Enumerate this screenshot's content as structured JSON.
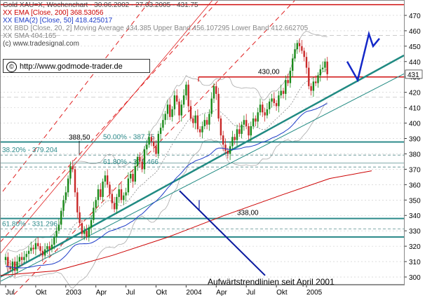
{
  "header": {
    "title": "Gold XAU=X, Wochenchart - 30.06.2002 - 27.03.2005 - 431.75",
    "ema200": "XX EMA [Close, 200] 368.53056",
    "ema50": "XX EMA(2) [Close, 50] 418.425017",
    "bbd": "XX BBD [Close, 20, 2] Moving Average 434.385 Upper Band 456.107295 Lower Band 412.662705",
    "sma": "XX SMA 404.165",
    "source": "(c) www.tradesignal.com"
  },
  "watermark": {
    "symbol": "©",
    "url": "http://www.godmode-trader.de"
  },
  "colors": {
    "up": "#1a8a1a",
    "down": "#c82828",
    "ema200": "#cc0000",
    "ema50": "#1e3cc8",
    "band": "#aaaaaa",
    "support": "#2e8b8b",
    "resistance": "#d01010",
    "trend": "#208a82",
    "projection": "#1428c8",
    "annotation_line": "#0a1aa0",
    "channel_red": "#e02020",
    "legend_top": "#444444",
    "legend_red": "#cc0000",
    "legend_blue": "#1e3cc8",
    "legend_gray": "#888888"
  },
  "chart_data": {
    "type": "candlestick",
    "title": "Gold XAU=X, Wochenchart - 30.06.2002 - 27.03.2005 - 431.75",
    "ylim": [
      295,
      480
    ],
    "yticks": [
      300,
      310,
      320,
      330,
      340,
      350,
      360,
      370,
      380,
      390,
      400,
      410,
      420,
      430,
      440,
      450,
      460,
      470
    ],
    "last_price_label": "431",
    "x_labels": [
      "Jul",
      "Okt",
      "2003",
      "Apr",
      "Jul",
      "Okt",
      "2004",
      "Apr",
      "Jul",
      "Okt",
      "2005"
    ],
    "x_label_weeks": [
      0,
      13,
      26,
      39,
      52,
      65,
      78,
      91,
      104,
      117,
      130
    ],
    "total_weeks": 170,
    "close": [
      313,
      307,
      305,
      310,
      304,
      310,
      313,
      311,
      313,
      315,
      317,
      319,
      318,
      322,
      320,
      317,
      314,
      318,
      320,
      318,
      321,
      326,
      330,
      334,
      343,
      350,
      355,
      364,
      372,
      370,
      355,
      342,
      335,
      328,
      330,
      326,
      332,
      337,
      345,
      350,
      357,
      352,
      362,
      366,
      360,
      354,
      348,
      344,
      352,
      357,
      350,
      353,
      355,
      364,
      367,
      362,
      372,
      378,
      375,
      370,
      383,
      386,
      391,
      388,
      385,
      380,
      393,
      397,
      402,
      406,
      412,
      404,
      409,
      418,
      414,
      405,
      412,
      418,
      425,
      411,
      403,
      400,
      405,
      396,
      394,
      398,
      402,
      399,
      406,
      416,
      424,
      419,
      403,
      392,
      386,
      382,
      380,
      385,
      391,
      389,
      396,
      393,
      399,
      402,
      398,
      392,
      398,
      403,
      401,
      407,
      412,
      407,
      405,
      409,
      414,
      416,
      413,
      411,
      418,
      421,
      419,
      428,
      426,
      434,
      442,
      448,
      452,
      450,
      447,
      443,
      436,
      424,
      421,
      427,
      426,
      431,
      435,
      436,
      440,
      431.75
    ],
    "levels": [
      {
        "label": "430,00",
        "value": 430
      },
      {
        "label": "50.00% - 387.75",
        "value": 387.75
      },
      {
        "label": "38.20% - 379.204",
        "value": 379.204
      },
      {
        "label": "61.80% - 371.466",
        "value": 371.466
      },
      {
        "label": "338,00",
        "value": 338
      },
      {
        "label": "61.80% - 331.296",
        "value": 331.296
      },
      {
        "label": "388,50",
        "value": 388.5
      }
    ],
    "annotation": "Aufwärtstrendlinien seit April 2001"
  }
}
